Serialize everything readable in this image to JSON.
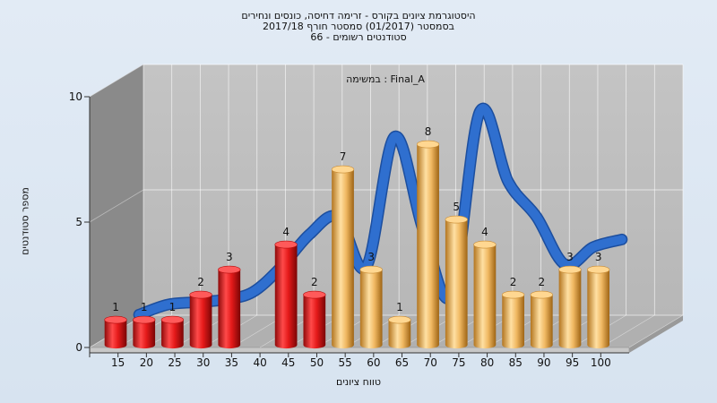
{
  "chart_data": {
    "type": "bar",
    "title_lines": [
      "היסטוגרמת ציונים בקורס - זרימה דחיסה, כונסים ונחירים",
      "בסמסטר (01/2017) סמסטר חורף 2017/18",
      "סטודנטים רשומים - 66"
    ],
    "annotation": "במשימה : Final_A",
    "xlabel": "טווח ציונים",
    "ylabel": "מספר סטודנטים",
    "ylim": [
      0,
      10
    ],
    "yticks": [
      0,
      5,
      10
    ],
    "categories": [
      "15",
      "20",
      "25",
      "30",
      "35",
      "40",
      "45",
      "50",
      "55",
      "60",
      "65",
      "70",
      "75",
      "80",
      "85",
      "90",
      "95",
      "100"
    ],
    "values": [
      1,
      1,
      1,
      2,
      3,
      0,
      4,
      2,
      7,
      3,
      1,
      8,
      5,
      4,
      2,
      2,
      3,
      3
    ],
    "colors": {
      "failing": "#e01e1e",
      "passing": "#f2b35e",
      "curve": "#2f6fcf"
    },
    "failing_categories": [
      "15",
      "20",
      "25",
      "30",
      "35",
      "40",
      "45",
      "50"
    ],
    "curve_values": [
      0.6,
      1,
      1.1,
      1.2,
      1.5,
      2.5,
      3.8,
      4.5,
      2.5,
      7.7,
      4.0,
      1.4,
      8.7,
      5.9,
      4.5,
      2.6,
      3.3,
      3.6
    ],
    "legend": "none",
    "grid": true
  }
}
